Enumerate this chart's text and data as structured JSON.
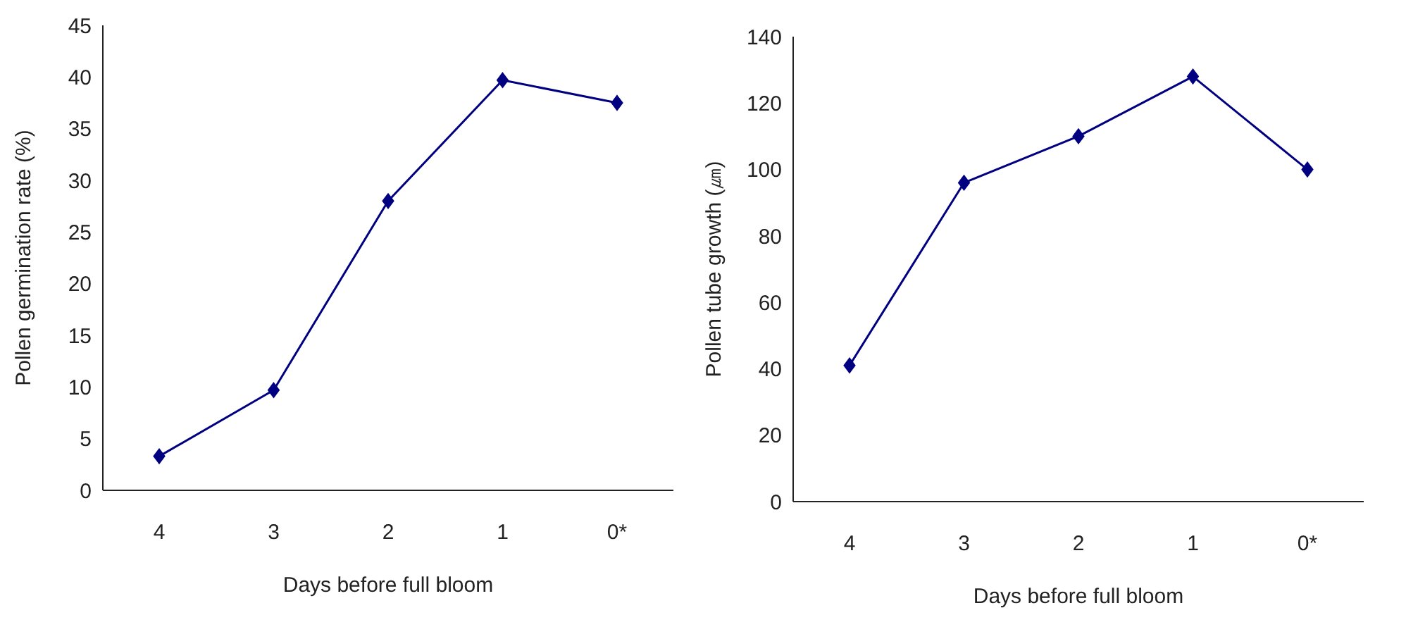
{
  "chart_data": [
    {
      "type": "line",
      "xlabel": "Days before full bloom",
      "ylabel": "Pollen germination rate (%)",
      "categories": [
        "4",
        "3",
        "2",
        "1",
        "0*"
      ],
      "series": [
        {
          "color": "#000080",
          "values": [
            3.3,
            9.7,
            28,
            39.7,
            37.5
          ]
        }
      ],
      "ylim": [
        0,
        45
      ],
      "yticks": [
        0,
        5,
        10,
        15,
        20,
        25,
        30,
        35,
        40,
        45
      ],
      "grid": false,
      "legend": false,
      "marker": "diamond",
      "line_style": "solid"
    },
    {
      "type": "line",
      "xlabel": "Days before full bloom",
      "ylabel": "Pollen tube growth (㎛)",
      "categories": [
        "4",
        "3",
        "2",
        "1",
        "0*"
      ],
      "series": [
        {
          "color": "#000080",
          "values": [
            41,
            96,
            110,
            128,
            100
          ]
        }
      ],
      "ylim": [
        0,
        140
      ],
      "yticks": [
        0,
        20,
        40,
        60,
        80,
        100,
        120,
        140
      ],
      "grid": false,
      "legend": false,
      "marker": "diamond",
      "line_style": "solid"
    }
  ]
}
